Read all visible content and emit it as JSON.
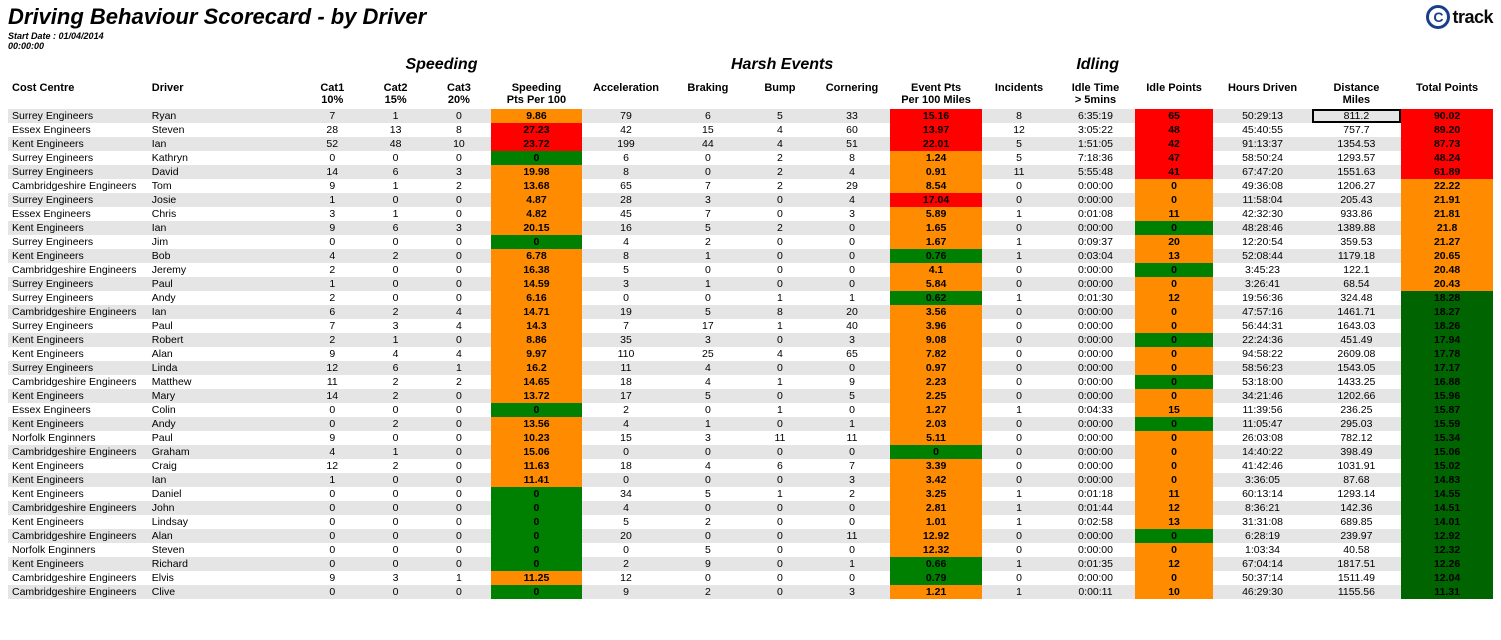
{
  "title": "Driving Behaviour Scorecard - by Driver",
  "logo": {
    "c": "C",
    "track": "track"
  },
  "meta": {
    "label": "Start Date  :",
    "value": "01/04/2014",
    "time": "00:00:00"
  },
  "groups": {
    "speeding": "Speeding",
    "harsh": "Harsh Events",
    "idling": "Idling"
  },
  "headers": {
    "cost_centre": "Cost Centre",
    "driver": "Driver",
    "cat1": "Cat1\n10%",
    "cat2": "Cat2\n15%",
    "cat3": "Cat3\n20%",
    "speeding_pts": "Speeding\nPts Per 100",
    "accel": "Acceleration",
    "braking": "Braking",
    "bump": "Bump",
    "corner": "Cornering",
    "event_pts": "Event Pts\nPer 100 Miles",
    "incidents": "Incidents",
    "idle_time": "Idle Time\n> 5mins",
    "idle_pts": "Idle Points",
    "hours": "Hours Driven",
    "distance": "Distance\nMiles",
    "total": "Total Points"
  },
  "colors": {
    "red": "#ff0000",
    "orange": "#ff8c00",
    "green": "#008000",
    "dgreen": "#006400",
    "row_odd": "#e5e5e5",
    "row_even": "#ffffff"
  },
  "selected_cell": {
    "row": 0,
    "col": "distance"
  },
  "rows": [
    {
      "cc": "Surrey Engineers",
      "drv": "Ryan",
      "c1": 7,
      "c2": 1,
      "c3": 0,
      "spd": {
        "v": "9.86",
        "c": "orange"
      },
      "acc": 79,
      "brk": 6,
      "bmp": 5,
      "cor": 33,
      "evt": {
        "v": "15.16",
        "c": "red"
      },
      "inc": 8,
      "idt": "6:35:19",
      "idp": {
        "v": "65",
        "c": "red"
      },
      "hrs": "50:29:13",
      "dist": "811.2",
      "tot": {
        "v": "90.02",
        "c": "red"
      }
    },
    {
      "cc": "Essex Engineers",
      "drv": "Steven",
      "c1": 28,
      "c2": 13,
      "c3": 8,
      "spd": {
        "v": "27.23",
        "c": "red"
      },
      "acc": 42,
      "brk": 15,
      "bmp": 4,
      "cor": 60,
      "evt": {
        "v": "13.97",
        "c": "red"
      },
      "inc": 12,
      "idt": "3:05:22",
      "idp": {
        "v": "48",
        "c": "red"
      },
      "hrs": "45:40:55",
      "dist": "757.7",
      "tot": {
        "v": "89.20",
        "c": "red"
      }
    },
    {
      "cc": "Kent Engineers",
      "drv": "Ian",
      "c1": 52,
      "c2": 48,
      "c3": 10,
      "spd": {
        "v": "23.72",
        "c": "red"
      },
      "acc": 199,
      "brk": 44,
      "bmp": 4,
      "cor": 51,
      "evt": {
        "v": "22.01",
        "c": "red"
      },
      "inc": 5,
      "idt": "1:51:05",
      "idp": {
        "v": "42",
        "c": "red"
      },
      "hrs": "91:13:37",
      "dist": "1354.53",
      "tot": {
        "v": "87.73",
        "c": "red"
      }
    },
    {
      "cc": "Surrey Engineers",
      "drv": "Kathryn",
      "c1": 0,
      "c2": 0,
      "c3": 0,
      "spd": {
        "v": "0",
        "c": "green"
      },
      "acc": 6,
      "brk": 0,
      "bmp": 2,
      "cor": 8,
      "evt": {
        "v": "1.24",
        "c": "orange"
      },
      "inc": 5,
      "idt": "7:18:36",
      "idp": {
        "v": "47",
        "c": "red"
      },
      "hrs": "58:50:24",
      "dist": "1293.57",
      "tot": {
        "v": "48.24",
        "c": "red"
      }
    },
    {
      "cc": "Surrey Engineers",
      "drv": "David",
      "c1": 14,
      "c2": 6,
      "c3": 3,
      "spd": {
        "v": "19.98",
        "c": "orange"
      },
      "acc": 8,
      "brk": 0,
      "bmp": 2,
      "cor": 4,
      "evt": {
        "v": "0.91",
        "c": "orange"
      },
      "inc": 11,
      "idt": "5:55:48",
      "idp": {
        "v": "41",
        "c": "red"
      },
      "hrs": "67:47:20",
      "dist": "1551.63",
      "tot": {
        "v": "61.89",
        "c": "red"
      }
    },
    {
      "cc": "Cambridgeshire Engineers",
      "drv": "Tom",
      "c1": 9,
      "c2": 1,
      "c3": 2,
      "spd": {
        "v": "13.68",
        "c": "orange"
      },
      "acc": 65,
      "brk": 7,
      "bmp": 2,
      "cor": 29,
      "evt": {
        "v": "8.54",
        "c": "orange"
      },
      "inc": 0,
      "idt": "0:00:00",
      "idp": {
        "v": "0",
        "c": "orange"
      },
      "hrs": "49:36:08",
      "dist": "1206.27",
      "tot": {
        "v": "22.22",
        "c": "orange"
      }
    },
    {
      "cc": "Surrey Engineers",
      "drv": "Josie",
      "c1": 1,
      "c2": 0,
      "c3": 0,
      "spd": {
        "v": "4.87",
        "c": "orange"
      },
      "acc": 28,
      "brk": 3,
      "bmp": 0,
      "cor": 4,
      "evt": {
        "v": "17.04",
        "c": "red"
      },
      "inc": 0,
      "idt": "0:00:00",
      "idp": {
        "v": "0",
        "c": "orange"
      },
      "hrs": "11:58:04",
      "dist": "205.43",
      "tot": {
        "v": "21.91",
        "c": "orange"
      }
    },
    {
      "cc": "Essex Engineers",
      "drv": "Chris",
      "c1": 3,
      "c2": 1,
      "c3": 0,
      "spd": {
        "v": "4.82",
        "c": "orange"
      },
      "acc": 45,
      "brk": 7,
      "bmp": 0,
      "cor": 3,
      "evt": {
        "v": "5.89",
        "c": "orange"
      },
      "inc": 1,
      "idt": "0:01:08",
      "idp": {
        "v": "11",
        "c": "orange"
      },
      "hrs": "42:32:30",
      "dist": "933.86",
      "tot": {
        "v": "21.81",
        "c": "orange"
      }
    },
    {
      "cc": "Kent Engineers",
      "drv": "Ian",
      "c1": 9,
      "c2": 6,
      "c3": 3,
      "spd": {
        "v": "20.15",
        "c": "orange"
      },
      "acc": 16,
      "brk": 5,
      "bmp": 2,
      "cor": 0,
      "evt": {
        "v": "1.65",
        "c": "orange"
      },
      "inc": 0,
      "idt": "0:00:00",
      "idp": {
        "v": "0",
        "c": "green"
      },
      "hrs": "48:28:46",
      "dist": "1389.88",
      "tot": {
        "v": "21.8",
        "c": "orange"
      }
    },
    {
      "cc": "Surrey Engineers",
      "drv": "Jim",
      "c1": 0,
      "c2": 0,
      "c3": 0,
      "spd": {
        "v": "0",
        "c": "green"
      },
      "acc": 4,
      "brk": 2,
      "bmp": 0,
      "cor": 0,
      "evt": {
        "v": "1.67",
        "c": "orange"
      },
      "inc": 1,
      "idt": "0:09:37",
      "idp": {
        "v": "20",
        "c": "orange"
      },
      "hrs": "12:20:54",
      "dist": "359.53",
      "tot": {
        "v": "21.27",
        "c": "orange"
      }
    },
    {
      "cc": "Kent Engineers",
      "drv": "Bob",
      "c1": 4,
      "c2": 2,
      "c3": 0,
      "spd": {
        "v": "6.78",
        "c": "orange"
      },
      "acc": 8,
      "brk": 1,
      "bmp": 0,
      "cor": 0,
      "evt": {
        "v": "0.76",
        "c": "green"
      },
      "inc": 1,
      "idt": "0:03:04",
      "idp": {
        "v": "13",
        "c": "orange"
      },
      "hrs": "52:08:44",
      "dist": "1179.18",
      "tot": {
        "v": "20.65",
        "c": "orange"
      }
    },
    {
      "cc": "Cambridgeshire Engineers",
      "drv": "Jeremy",
      "c1": 2,
      "c2": 0,
      "c3": 0,
      "spd": {
        "v": "16.38",
        "c": "orange"
      },
      "acc": 5,
      "brk": 0,
      "bmp": 0,
      "cor": 0,
      "evt": {
        "v": "4.1",
        "c": "orange"
      },
      "inc": 0,
      "idt": "0:00:00",
      "idp": {
        "v": "0",
        "c": "green"
      },
      "hrs": "3:45:23",
      "dist": "122.1",
      "tot": {
        "v": "20.48",
        "c": "orange"
      }
    },
    {
      "cc": "Surrey Engineers",
      "drv": "Paul",
      "c1": 1,
      "c2": 0,
      "c3": 0,
      "spd": {
        "v": "14.59",
        "c": "orange"
      },
      "acc": 3,
      "brk": 1,
      "bmp": 0,
      "cor": 0,
      "evt": {
        "v": "5.84",
        "c": "orange"
      },
      "inc": 0,
      "idt": "0:00:00",
      "idp": {
        "v": "0",
        "c": "orange"
      },
      "hrs": "3:26:41",
      "dist": "68.54",
      "tot": {
        "v": "20.43",
        "c": "orange"
      }
    },
    {
      "cc": "Surrey Engineers",
      "drv": "Andy",
      "c1": 2,
      "c2": 0,
      "c3": 0,
      "spd": {
        "v": "6.16",
        "c": "orange"
      },
      "acc": 0,
      "brk": 0,
      "bmp": 1,
      "cor": 1,
      "evt": {
        "v": "0.62",
        "c": "green"
      },
      "inc": 1,
      "idt": "0:01:30",
      "idp": {
        "v": "12",
        "c": "orange"
      },
      "hrs": "19:56:36",
      "dist": "324.48",
      "tot": {
        "v": "18.28",
        "c": "dgreen"
      }
    },
    {
      "cc": "Cambridgeshire Engineers",
      "drv": "Ian",
      "c1": 6,
      "c2": 2,
      "c3": 4,
      "spd": {
        "v": "14.71",
        "c": "orange"
      },
      "acc": 19,
      "brk": 5,
      "bmp": 8,
      "cor": 20,
      "evt": {
        "v": "3.56",
        "c": "orange"
      },
      "inc": 0,
      "idt": "0:00:00",
      "idp": {
        "v": "0",
        "c": "orange"
      },
      "hrs": "47:57:16",
      "dist": "1461.71",
      "tot": {
        "v": "18.27",
        "c": "dgreen"
      }
    },
    {
      "cc": "Surrey Engineers",
      "drv": "Paul",
      "c1": 7,
      "c2": 3,
      "c3": 4,
      "spd": {
        "v": "14.3",
        "c": "orange"
      },
      "acc": 7,
      "brk": 17,
      "bmp": 1,
      "cor": 40,
      "evt": {
        "v": "3.96",
        "c": "orange"
      },
      "inc": 0,
      "idt": "0:00:00",
      "idp": {
        "v": "0",
        "c": "orange"
      },
      "hrs": "56:44:31",
      "dist": "1643.03",
      "tot": {
        "v": "18.26",
        "c": "dgreen"
      }
    },
    {
      "cc": "Kent Engineers",
      "drv": "Robert",
      "c1": 2,
      "c2": 1,
      "c3": 0,
      "spd": {
        "v": "8.86",
        "c": "orange"
      },
      "acc": 35,
      "brk": 3,
      "bmp": 0,
      "cor": 3,
      "evt": {
        "v": "9.08",
        "c": "orange"
      },
      "inc": 0,
      "idt": "0:00:00",
      "idp": {
        "v": "0",
        "c": "green"
      },
      "hrs": "22:24:36",
      "dist": "451.49",
      "tot": {
        "v": "17.94",
        "c": "dgreen"
      }
    },
    {
      "cc": "Kent Engineers",
      "drv": "Alan",
      "c1": 9,
      "c2": 4,
      "c3": 4,
      "spd": {
        "v": "9.97",
        "c": "orange"
      },
      "acc": 110,
      "brk": 25,
      "bmp": 4,
      "cor": 65,
      "evt": {
        "v": "7.82",
        "c": "orange"
      },
      "inc": 0,
      "idt": "0:00:00",
      "idp": {
        "v": "0",
        "c": "orange"
      },
      "hrs": "94:58:22",
      "dist": "2609.08",
      "tot": {
        "v": "17.78",
        "c": "dgreen"
      }
    },
    {
      "cc": "Surrey Engineers",
      "drv": "Linda",
      "c1": 12,
      "c2": 6,
      "c3": 1,
      "spd": {
        "v": "16.2",
        "c": "orange"
      },
      "acc": 11,
      "brk": 4,
      "bmp": 0,
      "cor": 0,
      "evt": {
        "v": "0.97",
        "c": "orange"
      },
      "inc": 0,
      "idt": "0:00:00",
      "idp": {
        "v": "0",
        "c": "orange"
      },
      "hrs": "58:56:23",
      "dist": "1543.05",
      "tot": {
        "v": "17.17",
        "c": "dgreen"
      }
    },
    {
      "cc": "Cambridgeshire Engineers",
      "drv": "Matthew",
      "c1": 11,
      "c2": 2,
      "c3": 2,
      "spd": {
        "v": "14.65",
        "c": "orange"
      },
      "acc": 18,
      "brk": 4,
      "bmp": 1,
      "cor": 9,
      "evt": {
        "v": "2.23",
        "c": "orange"
      },
      "inc": 0,
      "idt": "0:00:00",
      "idp": {
        "v": "0",
        "c": "green"
      },
      "hrs": "53:18:00",
      "dist": "1433.25",
      "tot": {
        "v": "16.88",
        "c": "dgreen"
      }
    },
    {
      "cc": "Kent Engineers",
      "drv": "Mary",
      "c1": 14,
      "c2": 2,
      "c3": 0,
      "spd": {
        "v": "13.72",
        "c": "orange"
      },
      "acc": 17,
      "brk": 5,
      "bmp": 0,
      "cor": 5,
      "evt": {
        "v": "2.25",
        "c": "orange"
      },
      "inc": 0,
      "idt": "0:00:00",
      "idp": {
        "v": "0",
        "c": "orange"
      },
      "hrs": "34:21:46",
      "dist": "1202.66",
      "tot": {
        "v": "15.96",
        "c": "dgreen"
      }
    },
    {
      "cc": "Essex Engineers",
      "drv": "Colin",
      "c1": 0,
      "c2": 0,
      "c3": 0,
      "spd": {
        "v": "0",
        "c": "green"
      },
      "acc": 2,
      "brk": 0,
      "bmp": 1,
      "cor": 0,
      "evt": {
        "v": "1.27",
        "c": "orange"
      },
      "inc": 1,
      "idt": "0:04:33",
      "idp": {
        "v": "15",
        "c": "orange"
      },
      "hrs": "11:39:56",
      "dist": "236.25",
      "tot": {
        "v": "15.87",
        "c": "dgreen"
      }
    },
    {
      "cc": "Kent Engineers",
      "drv": "Andy",
      "c1": 0,
      "c2": 2,
      "c3": 0,
      "spd": {
        "v": "13.56",
        "c": "orange"
      },
      "acc": 4,
      "brk": 1,
      "bmp": 0,
      "cor": 1,
      "evt": {
        "v": "2.03",
        "c": "orange"
      },
      "inc": 0,
      "idt": "0:00:00",
      "idp": {
        "v": "0",
        "c": "green"
      },
      "hrs": "11:05:47",
      "dist": "295.03",
      "tot": {
        "v": "15.59",
        "c": "dgreen"
      }
    },
    {
      "cc": "Norfolk Enginners",
      "drv": "Paul",
      "c1": 9,
      "c2": 0,
      "c3": 0,
      "spd": {
        "v": "10.23",
        "c": "orange"
      },
      "acc": 15,
      "brk": 3,
      "bmp": 11,
      "cor": 11,
      "evt": {
        "v": "5.11",
        "c": "orange"
      },
      "inc": 0,
      "idt": "0:00:00",
      "idp": {
        "v": "0",
        "c": "orange"
      },
      "hrs": "26:03:08",
      "dist": "782.12",
      "tot": {
        "v": "15.34",
        "c": "dgreen"
      }
    },
    {
      "cc": "Cambridgeshire Engineers",
      "drv": "Graham",
      "c1": 4,
      "c2": 1,
      "c3": 0,
      "spd": {
        "v": "15.06",
        "c": "orange"
      },
      "acc": 0,
      "brk": 0,
      "bmp": 0,
      "cor": 0,
      "evt": {
        "v": "0",
        "c": "green"
      },
      "inc": 0,
      "idt": "0:00:00",
      "idp": {
        "v": "0",
        "c": "orange"
      },
      "hrs": "14:40:22",
      "dist": "398.49",
      "tot": {
        "v": "15.06",
        "c": "dgreen"
      }
    },
    {
      "cc": "Kent Engineers",
      "drv": "Craig",
      "c1": 12,
      "c2": 2,
      "c3": 0,
      "spd": {
        "v": "11.63",
        "c": "orange"
      },
      "acc": 18,
      "brk": 4,
      "bmp": 6,
      "cor": 7,
      "evt": {
        "v": "3.39",
        "c": "orange"
      },
      "inc": 0,
      "idt": "0:00:00",
      "idp": {
        "v": "0",
        "c": "orange"
      },
      "hrs": "41:42:46",
      "dist": "1031.91",
      "tot": {
        "v": "15.02",
        "c": "dgreen"
      }
    },
    {
      "cc": "Kent Engineers",
      "drv": "Ian",
      "c1": 1,
      "c2": 0,
      "c3": 0,
      "spd": {
        "v": "11.41",
        "c": "orange"
      },
      "acc": 0,
      "brk": 0,
      "bmp": 0,
      "cor": 3,
      "evt": {
        "v": "3.42",
        "c": "orange"
      },
      "inc": 0,
      "idt": "0:00:00",
      "idp": {
        "v": "0",
        "c": "orange"
      },
      "hrs": "3:36:05",
      "dist": "87.68",
      "tot": {
        "v": "14.83",
        "c": "dgreen"
      }
    },
    {
      "cc": "Kent Engineers",
      "drv": "Daniel",
      "c1": 0,
      "c2": 0,
      "c3": 0,
      "spd": {
        "v": "0",
        "c": "green"
      },
      "acc": 34,
      "brk": 5,
      "bmp": 1,
      "cor": 2,
      "evt": {
        "v": "3.25",
        "c": "orange"
      },
      "inc": 1,
      "idt": "0:01:18",
      "idp": {
        "v": "11",
        "c": "orange"
      },
      "hrs": "60:13:14",
      "dist": "1293.14",
      "tot": {
        "v": "14.55",
        "c": "dgreen"
      }
    },
    {
      "cc": "Cambridgeshire Engineers",
      "drv": "John",
      "c1": 0,
      "c2": 0,
      "c3": 0,
      "spd": {
        "v": "0",
        "c": "green"
      },
      "acc": 4,
      "brk": 0,
      "bmp": 0,
      "cor": 0,
      "evt": {
        "v": "2.81",
        "c": "orange"
      },
      "inc": 1,
      "idt": "0:01:44",
      "idp": {
        "v": "12",
        "c": "orange"
      },
      "hrs": "8:36:21",
      "dist": "142.36",
      "tot": {
        "v": "14.51",
        "c": "dgreen"
      }
    },
    {
      "cc": "Kent Engineers",
      "drv": "Lindsay",
      "c1": 0,
      "c2": 0,
      "c3": 0,
      "spd": {
        "v": "0",
        "c": "green"
      },
      "acc": 5,
      "brk": 2,
      "bmp": 0,
      "cor": 0,
      "evt": {
        "v": "1.01",
        "c": "orange"
      },
      "inc": 1,
      "idt": "0:02:58",
      "idp": {
        "v": "13",
        "c": "orange"
      },
      "hrs": "31:31:08",
      "dist": "689.85",
      "tot": {
        "v": "14.01",
        "c": "dgreen"
      }
    },
    {
      "cc": "Cambridgeshire Engineers",
      "drv": "Alan",
      "c1": 0,
      "c2": 0,
      "c3": 0,
      "spd": {
        "v": "0",
        "c": "green"
      },
      "acc": 20,
      "brk": 0,
      "bmp": 0,
      "cor": 11,
      "evt": {
        "v": "12.92",
        "c": "orange"
      },
      "inc": 0,
      "idt": "0:00:00",
      "idp": {
        "v": "0",
        "c": "green"
      },
      "hrs": "6:28:19",
      "dist": "239.97",
      "tot": {
        "v": "12.92",
        "c": "dgreen"
      }
    },
    {
      "cc": "Norfolk Enginners",
      "drv": "Steven",
      "c1": 0,
      "c2": 0,
      "c3": 0,
      "spd": {
        "v": "0",
        "c": "green"
      },
      "acc": 0,
      "brk": 5,
      "bmp": 0,
      "cor": 0,
      "evt": {
        "v": "12.32",
        "c": "orange"
      },
      "inc": 0,
      "idt": "0:00:00",
      "idp": {
        "v": "0",
        "c": "orange"
      },
      "hrs": "1:03:34",
      "dist": "40.58",
      "tot": {
        "v": "12.32",
        "c": "dgreen"
      }
    },
    {
      "cc": "Kent Engineers",
      "drv": "Richard",
      "c1": 0,
      "c2": 0,
      "c3": 0,
      "spd": {
        "v": "0",
        "c": "green"
      },
      "acc": 2,
      "brk": 9,
      "bmp": 0,
      "cor": 1,
      "evt": {
        "v": "0.66",
        "c": "green"
      },
      "inc": 1,
      "idt": "0:01:35",
      "idp": {
        "v": "12",
        "c": "orange"
      },
      "hrs": "67:04:14",
      "dist": "1817.51",
      "tot": {
        "v": "12.26",
        "c": "dgreen"
      }
    },
    {
      "cc": "Cambridgeshire Engineers",
      "drv": "Elvis",
      "c1": 9,
      "c2": 3,
      "c3": 1,
      "spd": {
        "v": "11.25",
        "c": "orange"
      },
      "acc": 12,
      "brk": 0,
      "bmp": 0,
      "cor": 0,
      "evt": {
        "v": "0.79",
        "c": "green"
      },
      "inc": 0,
      "idt": "0:00:00",
      "idp": {
        "v": "0",
        "c": "orange"
      },
      "hrs": "50:37:14",
      "dist": "1511.49",
      "tot": {
        "v": "12.04",
        "c": "dgreen"
      }
    },
    {
      "cc": "Cambridgeshire Engineers",
      "drv": "Clive",
      "c1": 0,
      "c2": 0,
      "c3": 0,
      "spd": {
        "v": "0",
        "c": "green"
      },
      "acc": 9,
      "brk": 2,
      "bmp": 0,
      "cor": 3,
      "evt": {
        "v": "1.21",
        "c": "orange"
      },
      "inc": 1,
      "idt": "0:00:11",
      "idp": {
        "v": "10",
        "c": "orange"
      },
      "hrs": "46:29:30",
      "dist": "1155.56",
      "tot": {
        "v": "11.31",
        "c": "dgreen"
      }
    }
  ]
}
